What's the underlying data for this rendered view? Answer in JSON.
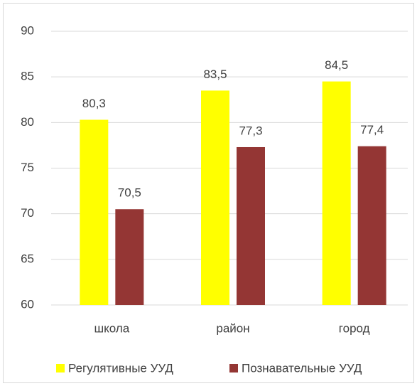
{
  "chart_data": {
    "type": "bar",
    "categories": [
      "школа",
      "район",
      "город"
    ],
    "series": [
      {
        "name": "Регулятивные УУД",
        "color": "#ffff00",
        "values": [
          80.3,
          83.5,
          84.5
        ],
        "value_labels": [
          "80,3",
          "83,5",
          "84,5"
        ]
      },
      {
        "name": "Познавательные УУД",
        "color": "#943634",
        "values": [
          70.5,
          77.3,
          77.4
        ],
        "value_labels": [
          "70,5",
          "77,3",
          "77,4"
        ]
      }
    ],
    "ylim": [
      60,
      90
    ],
    "yticks": [
      60,
      65,
      70,
      75,
      80,
      85,
      90
    ],
    "grid": true,
    "legend": "bottom"
  }
}
